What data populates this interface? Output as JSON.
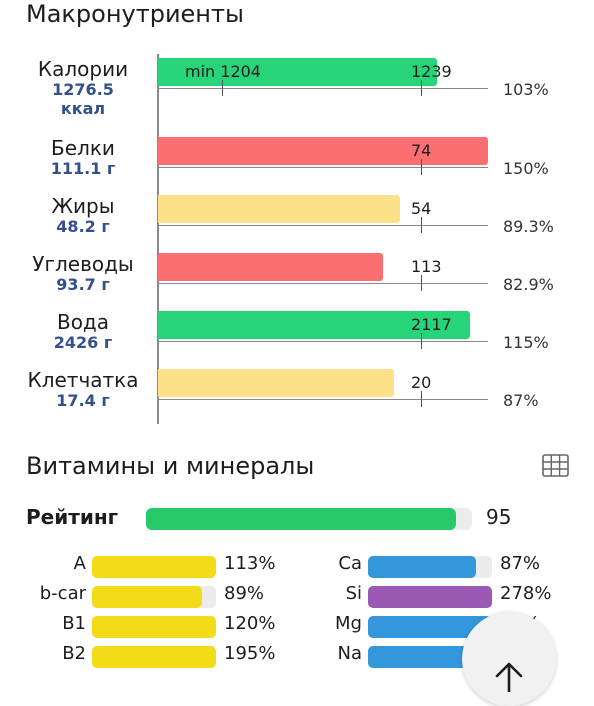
{
  "macros": {
    "title": "Макронутриенты",
    "items": [
      {
        "name": "Калории",
        "value": "1276.5",
        "unit": "ккал",
        "norm": "1239",
        "min": "min 1204",
        "pct": "103%",
        "color": "#28d47a",
        "fill": 1.03
      },
      {
        "name": "Белки",
        "value": "111.1 г",
        "norm": "74",
        "pct": "150%",
        "color": "#fb6f72",
        "fill": 1.5
      },
      {
        "name": "Жиры",
        "value": "48.2 г",
        "norm": "54",
        "pct": "89.3%",
        "color": "#fde189",
        "fill": 0.893
      },
      {
        "name": "Углеводы",
        "value": "93.7 г",
        "norm": "113",
        "pct": "82.9%",
        "color": "#fb6f72",
        "fill": 0.829
      },
      {
        "name": "Вода",
        "value": "2426 г",
        "norm": "2117",
        "pct": "115%",
        "color": "#28d47a",
        "fill": 1.15
      },
      {
        "name": "Клетчатка",
        "value": "17.4 г",
        "norm": "20",
        "pct": "87%",
        "color": "#fde189",
        "fill": 0.87
      }
    ]
  },
  "vitamins": {
    "title": "Витамины и минералы",
    "icon": "table-icon",
    "rating_label": "Рейтинг",
    "rating_value": "95",
    "rating_fill": 0.95,
    "rating_color": "#28c96b",
    "left": [
      {
        "name": "A",
        "pct": "113%",
        "color": "#f2dc18",
        "fill": 1.0
      },
      {
        "name": "b-car",
        "pct": "89%",
        "color": "#f2dc18",
        "fill": 0.89
      },
      {
        "name": "B1",
        "pct": "120%",
        "color": "#f2dc18",
        "fill": 1.0
      },
      {
        "name": "B2",
        "pct": "195%",
        "color": "#f2dc18",
        "fill": 1.0
      }
    ],
    "right": [
      {
        "name": "Ca",
        "pct": "87%",
        "color": "#3497dc",
        "fill": 0.87
      },
      {
        "name": "Si",
        "pct": "278%",
        "color": "#9b59b6",
        "fill": 1.0
      },
      {
        "name": "Mg",
        "pct": "99%",
        "color": "#3497dc",
        "fill": 0.99
      },
      {
        "name": "Na",
        "pct": "",
        "color": "#3497dc",
        "fill": 1.0
      }
    ]
  },
  "fab": {
    "icon": "arrow-up-icon"
  }
}
